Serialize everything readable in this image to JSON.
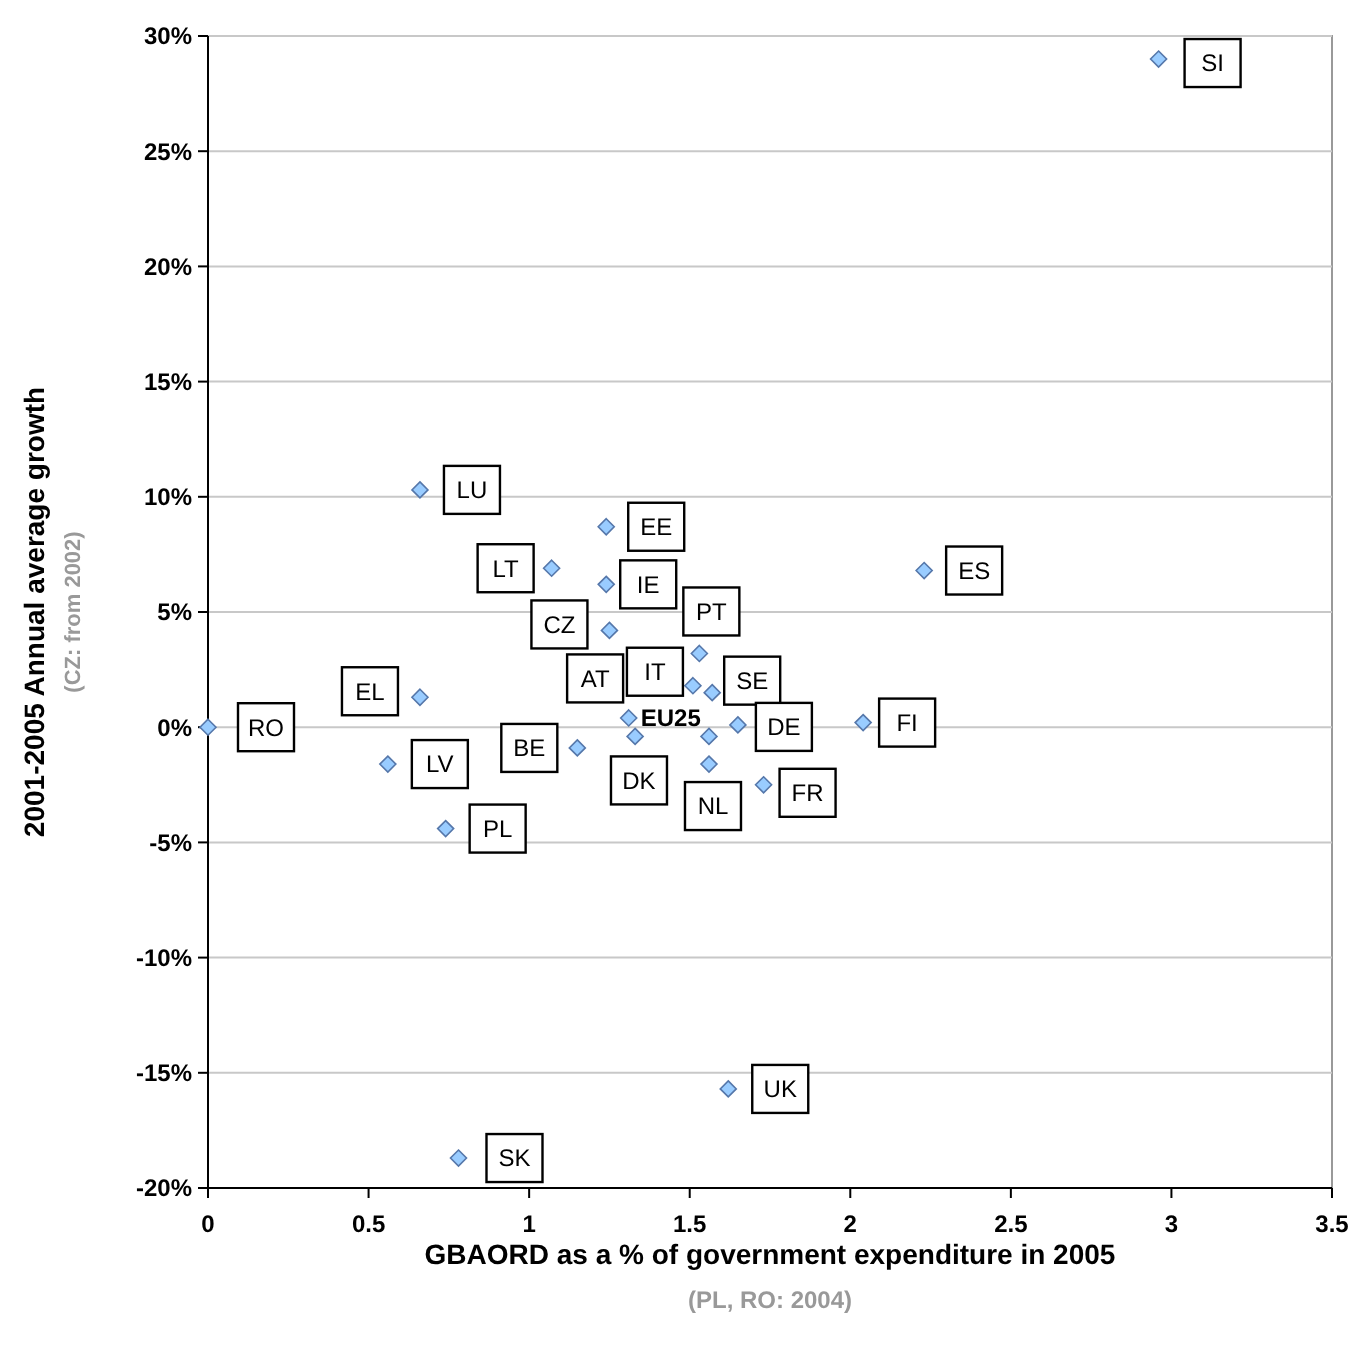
{
  "chart_data": {
    "type": "scatter",
    "xlabel": "GBAORD as a % of government expenditure in 2005",
    "ylabel": "2001-2005 Annual average growth",
    "x": [
      2.96,
      0.66,
      1.24,
      1.07,
      1.24,
      1.25,
      1.53,
      1.51,
      1.57,
      1.31,
      1.65,
      1.56,
      1.33,
      1.56,
      2.04,
      2.23,
      0.66,
      0,
      0.56,
      1.15,
      0.74,
      1.73,
      1.62,
      0.78
    ],
    "series": [
      {
        "color": "#99ccff",
        "values": [
          29,
          10.3,
          8.7,
          6.9,
          6.2,
          4.2,
          3.2,
          1.8,
          1.5,
          0.4,
          0.1,
          -0.4,
          -0.4,
          -1.6,
          0.2,
          6.8,
          1.3,
          0,
          -1.6,
          -0.9,
          -4.4,
          -2.5,
          -15.7,
          -18.7
        ]
      }
    ],
    "xlim": [
      0,
      3.5
    ],
    "xticks": [
      0,
      0.5,
      1,
      1.5,
      2,
      2.5,
      3,
      3.5
    ],
    "ylim": [
      -20,
      30
    ],
    "yticks": [
      {
        "value": -20,
        "label": "-20%"
      },
      {
        "value": -15,
        "label": "-15%"
      },
      {
        "value": -10,
        "label": "-10%"
      },
      {
        "value": -5,
        "label": "-5%"
      },
      {
        "value": 0,
        "label": "0%"
      },
      {
        "value": 5,
        "label": "5%"
      },
      {
        "value": 10,
        "label": "10%"
      },
      {
        "value": 15,
        "label": "15%"
      },
      {
        "value": 20,
        "label": "20%"
      },
      {
        "value": 25,
        "label": "25%"
      },
      {
        "value": 30,
        "label": "30%"
      }
    ],
    "grid": "y",
    "marker": "diamond",
    "annotations": [
      "(PL, RO: 2004)",
      "(CZ: from 2002)",
      {
        "text": "SI",
        "x": 2.96,
        "y": 29
      },
      {
        "text": "LU",
        "x": 0.66,
        "y": 10.3
      },
      {
        "text": "EE",
        "x": 1.24,
        "y": 8.7
      },
      {
        "text": "LT",
        "x": 1.07,
        "y": 6.9
      },
      {
        "text": "IE",
        "x": 1.24,
        "y": 6.2
      },
      {
        "text": "CZ",
        "x": 1.25,
        "y": 4.2
      },
      {
        "text": "PT",
        "x": 1.53,
        "y": 3.2
      },
      {
        "text": "IT",
        "x": 1.51,
        "y": 1.8
      },
      {
        "text": "SE",
        "x": 1.57,
        "y": 1.5
      },
      {
        "text": "EU25",
        "x": 1.31,
        "y": 0.4
      },
      {
        "text": "DE",
        "x": 1.65,
        "y": 0.1
      },
      {
        "text": "AT",
        "x": 1.33,
        "y": -0.4
      },
      {
        "text": "DK",
        "x": 1.56,
        "y": -0.4
      },
      {
        "text": "NL",
        "x": 1.56,
        "y": -1.6
      },
      {
        "text": "FI",
        "x": 2.04,
        "y": 0.2
      },
      {
        "text": "ES",
        "x": 2.23,
        "y": 6.8
      },
      {
        "text": "EL",
        "x": 0.66,
        "y": 1.3
      },
      {
        "text": "RO",
        "x": 0,
        "y": 0
      },
      {
        "text": "LV",
        "x": 0.56,
        "y": -1.6
      },
      {
        "text": "BE",
        "x": 1.15,
        "y": -0.9
      },
      {
        "text": "PL",
        "x": 0.74,
        "y": -4.4
      },
      {
        "text": "FR",
        "x": 1.73,
        "y": -2.5
      },
      {
        "text": "UK",
        "x": 1.62,
        "y": -15.7
      },
      {
        "text": "SK",
        "x": 0.78,
        "y": -18.7
      }
    ]
  }
}
